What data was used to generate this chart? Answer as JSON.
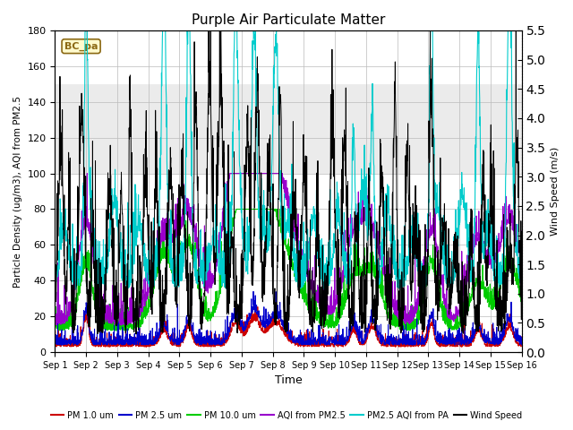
{
  "title": "Purple Air Particulate Matter",
  "xlabel": "Time",
  "ylabel_left": "Particle Density (ug/m3), AQI from PM2.5",
  "ylabel_right": "Wind Speed (m/s)",
  "annotation_text": "BC_pa",
  "annotation_color": "#8B6914",
  "annotation_bg": "#FFFACD",
  "x_tick_labels": [
    "Sep 1",
    "Sep 2",
    "Sep 3",
    "Sep 4",
    "Sep 5",
    "Sep 6",
    "Sep 7",
    "Sep 8",
    "Sep 9",
    "Sep 10",
    "Sep 11",
    "Sep 12",
    "Sep 13",
    "Sep 14",
    "Sep 15",
    "Sep 16"
  ],
  "ylim_left": [
    0,
    180
  ],
  "ylim_right": [
    0.0,
    5.5
  ],
  "yticks_left": [
    0,
    20,
    40,
    60,
    80,
    100,
    120,
    140,
    160,
    180
  ],
  "yticks_right": [
    0.0,
    0.5,
    1.0,
    1.5,
    2.0,
    2.5,
    3.0,
    3.5,
    4.0,
    4.5,
    5.0,
    5.5
  ],
  "shaded_band": [
    100,
    150
  ],
  "colors": {
    "pm1": "#CC0000",
    "pm25": "#0000CC",
    "pm10": "#00CC00",
    "aqi_pm25": "#9900CC",
    "aqi_pa": "#00CCCC",
    "wind": "#000000"
  },
  "legend_entries": [
    {
      "label": "PM 1.0 um",
      "color": "#CC0000"
    },
    {
      "label": "PM 2.5 um",
      "color": "#0000CC"
    },
    {
      "label": "PM 10.0 um",
      "color": "#00CC00"
    },
    {
      "label": "AQI from PM2.5",
      "color": "#9900CC"
    },
    {
      "label": "PM2.5 AQI from PA",
      "color": "#00CCCC"
    },
    {
      "label": "Wind Speed",
      "color": "#000000"
    }
  ],
  "n_points": 2160,
  "days": 15,
  "background_color": "#FFFFFF"
}
